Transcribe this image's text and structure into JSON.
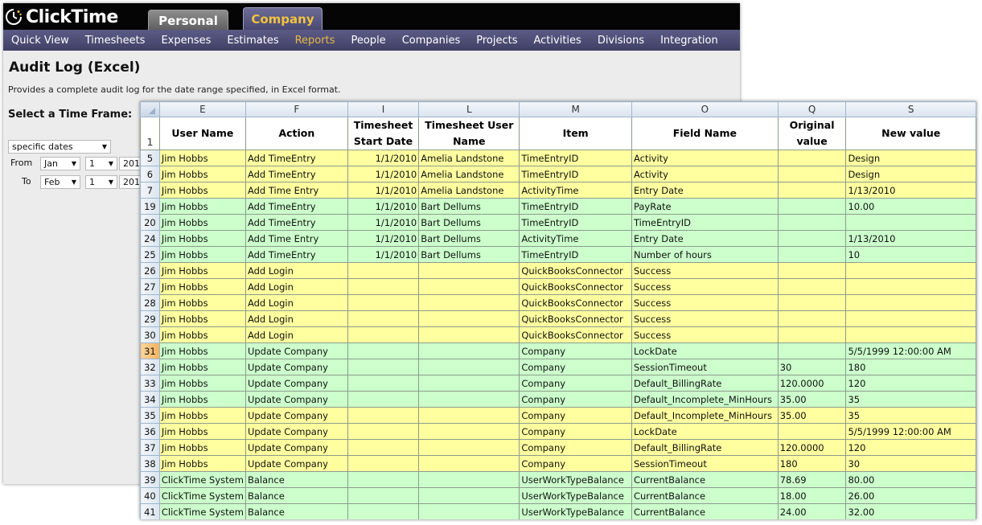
{
  "app": {
    "logo_text": "ClickTime",
    "top_tabs": [
      "Personal",
      "Company"
    ],
    "nav": [
      "Quick View",
      "Timesheets",
      "Expenses",
      "Estimates",
      "Reports",
      "People",
      "Companies",
      "Projects",
      "Activities",
      "Divisions",
      "Integration"
    ],
    "active_nav": "Reports"
  },
  "page": {
    "title": "Audit Log (Excel)",
    "description": "Provides a complete audit log for the date range specified, in Excel format.",
    "time_frame_label": "Select a Time Frame:",
    "date_mode": "specific dates",
    "from_label": "From",
    "from_month": "Jan",
    "from_day": "1",
    "from_year": "201",
    "to_label": "To",
    "to_month": "Feb",
    "to_day": "1",
    "to_year": "201"
  },
  "sheet": {
    "columns": [
      "E",
      "F",
      "I",
      "L",
      "M",
      "O",
      "Q",
      "S"
    ],
    "header_row_number": "1",
    "headers": [
      "User Name",
      "Action",
      "Timesheet Start Date",
      "Timesheet User Name",
      "Item",
      "Field Name",
      "Original value",
      "New value"
    ],
    "selected_row": "31",
    "rows": [
      {
        "n": "5",
        "fill": "y",
        "cells": [
          "Jim Hobbs",
          "Add TimeEntry",
          "1/1/2010",
          "Amelia Landstone",
          "TimeEntryID",
          "Activity",
          "",
          "Design"
        ]
      },
      {
        "n": "6",
        "fill": "y",
        "cells": [
          "Jim Hobbs",
          "Add TimeEntry",
          "1/1/2010",
          "Amelia Landstone",
          "TimeEntryID",
          "Activity",
          "",
          "Design"
        ]
      },
      {
        "n": "7",
        "fill": "y",
        "cells": [
          "Jim Hobbs",
          "Add Time Entry",
          "1/1/2010",
          "Amelia Landstone",
          "ActivityTime",
          "Entry Date",
          "",
          "1/13/2010"
        ]
      },
      {
        "n": "19",
        "fill": "g",
        "cells": [
          "Jim Hobbs",
          "Add TimeEntry",
          "1/1/2010",
          "Bart Dellums",
          "TimeEntryID",
          "PayRate",
          "",
          "10.00"
        ]
      },
      {
        "n": "20",
        "fill": "g",
        "cells": [
          "Jim Hobbs",
          "Add TimeEntry",
          "1/1/2010",
          "Bart Dellums",
          "TimeEntryID",
          "TimeEntryID",
          "",
          ""
        ]
      },
      {
        "n": "24",
        "fill": "g",
        "cells": [
          "Jim Hobbs",
          "Add Time Entry",
          "1/1/2010",
          "Bart Dellums",
          "ActivityTime",
          "Entry Date",
          "",
          "1/13/2010"
        ]
      },
      {
        "n": "25",
        "fill": "g",
        "cells": [
          "Jim Hobbs",
          "Add TimeEntry",
          "1/1/2010",
          "Bart Dellums",
          "TimeEntryID",
          "Number of hours",
          "",
          "10"
        ]
      },
      {
        "n": "26",
        "fill": "y",
        "cells": [
          "Jim Hobbs",
          "Add Login",
          "",
          "",
          "QuickBooksConnector",
          "Success",
          "",
          ""
        ]
      },
      {
        "n": "27",
        "fill": "y",
        "cells": [
          "Jim Hobbs",
          "Add Login",
          "",
          "",
          "QuickBooksConnector",
          "Success",
          "",
          ""
        ]
      },
      {
        "n": "28",
        "fill": "y",
        "cells": [
          "Jim Hobbs",
          "Add Login",
          "",
          "",
          "QuickBooksConnector",
          "Success",
          "",
          ""
        ]
      },
      {
        "n": "29",
        "fill": "y",
        "cells": [
          "Jim Hobbs",
          "Add Login",
          "",
          "",
          "QuickBooksConnector",
          "Success",
          "",
          ""
        ]
      },
      {
        "n": "30",
        "fill": "y",
        "cells": [
          "Jim Hobbs",
          "Add Login",
          "",
          "",
          "QuickBooksConnector",
          "Success",
          "",
          ""
        ]
      },
      {
        "n": "31",
        "fill": "g",
        "cells": [
          "Jim Hobbs",
          "Update Company",
          "",
          "",
          "Company",
          "LockDate",
          "",
          "5/5/1999 12:00:00 AM"
        ]
      },
      {
        "n": "32",
        "fill": "g",
        "cells": [
          "Jim Hobbs",
          "Update Company",
          "",
          "",
          "Company",
          "SessionTimeout",
          "30",
          "180"
        ]
      },
      {
        "n": "33",
        "fill": "g",
        "cells": [
          "Jim Hobbs",
          "Update Company",
          "",
          "",
          "Company",
          "Default_BillingRate",
          "120.0000",
          "120"
        ]
      },
      {
        "n": "34",
        "fill": "g",
        "cells": [
          "Jim Hobbs",
          "Update Company",
          "",
          "",
          "Company",
          "Default_Incomplete_MinHours",
          "35.00",
          "35"
        ]
      },
      {
        "n": "35",
        "fill": "y",
        "cells": [
          "Jim Hobbs",
          "Update Company",
          "",
          "",
          "Company",
          "Default_Incomplete_MinHours",
          "35.00",
          "35"
        ]
      },
      {
        "n": "36",
        "fill": "y",
        "cells": [
          "Jim Hobbs",
          "Update Company",
          "",
          "",
          "Company",
          "LockDate",
          "",
          "5/5/1999 12:00:00 AM"
        ]
      },
      {
        "n": "37",
        "fill": "y",
        "cells": [
          "Jim Hobbs",
          "Update Company",
          "",
          "",
          "Company",
          "Default_BillingRate",
          "120.0000",
          "120"
        ]
      },
      {
        "n": "38",
        "fill": "y",
        "cells": [
          "Jim Hobbs",
          "Update Company",
          "",
          "",
          "Company",
          "SessionTimeout",
          "180",
          "30"
        ]
      },
      {
        "n": "39",
        "fill": "g",
        "cells": [
          "ClickTime System",
          "Balance",
          "",
          "",
          "UserWorkTypeBalance",
          "CurrentBalance",
          "78.69",
          "80.00"
        ]
      },
      {
        "n": "40",
        "fill": "g",
        "cells": [
          "ClickTime System",
          "Balance",
          "",
          "",
          "UserWorkTypeBalance",
          "CurrentBalance",
          "18.00",
          "26.00"
        ]
      },
      {
        "n": "41",
        "fill": "g",
        "cells": [
          "ClickTime System",
          "Balance",
          "",
          "",
          "UserWorkTypeBalance",
          "CurrentBalance",
          "24.00",
          "32.00"
        ]
      }
    ]
  },
  "colors": {
    "yellow_fill": "#ffff9f",
    "green_fill": "#ccffcc",
    "nav_bg": "#4b4b74",
    "active_tab_text": "#f2c240"
  }
}
